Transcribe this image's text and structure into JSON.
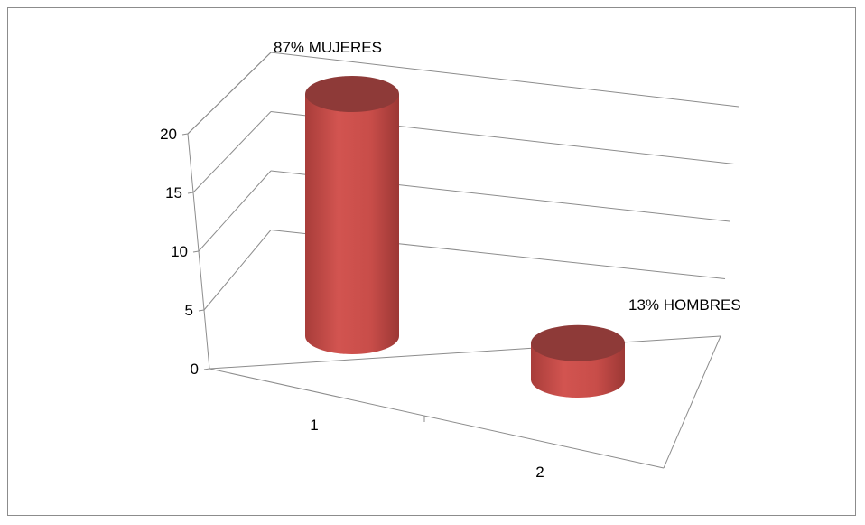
{
  "chart_data": {
    "type": "bar",
    "style": "3d-cylinder",
    "categories": [
      "1",
      "2"
    ],
    "values": [
      20,
      3
    ],
    "data_labels": [
      "87% MUJERES",
      "13% HOMBRES"
    ],
    "ylim": [
      0,
      20
    ],
    "yticks": [
      0,
      5,
      10,
      15,
      20
    ],
    "grid": true,
    "legend": "none",
    "colors": {
      "bar_side": "#c0504d",
      "bar_top": "#8e3a38",
      "grid": "#8c8c8c"
    }
  }
}
